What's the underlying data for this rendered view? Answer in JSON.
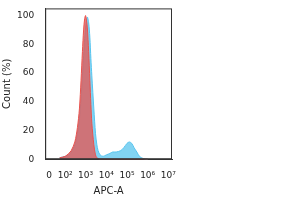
{
  "chart_data": {
    "type": "line",
    "x": [
      50,
      100,
      150,
      200,
      300,
      400,
      500,
      600,
      700,
      800,
      900,
      1000,
      1200,
      1400,
      1600,
      1800,
      2000,
      2500,
      3000,
      3500,
      4000,
      5000,
      7000,
      10000,
      15000,
      20000,
      30000,
      50000,
      70000,
      100000,
      130000,
      170000,
      220000,
      300000,
      400000,
      600000,
      1000000
    ],
    "series": [
      {
        "color": "#e8534f",
        "values": [
          1,
          2,
          4,
          6,
          12,
          22,
          35,
          55,
          75,
          90,
          98,
          100,
          92,
          75,
          55,
          38,
          25,
          10,
          3,
          1,
          0.5,
          0,
          0,
          0,
          0,
          0,
          0,
          0,
          0,
          0,
          0,
          0,
          0,
          0,
          0,
          0,
          0
        ]
      },
      {
        "color": "#58c4ee",
        "values": [
          1,
          2,
          3,
          5,
          10,
          18,
          28,
          42,
          58,
          72,
          84,
          92,
          99,
          95,
          85,
          70,
          58,
          35,
          18,
          10,
          6,
          3,
          2,
          3,
          4,
          5,
          5,
          6,
          8,
          11,
          12,
          11,
          8,
          5,
          2,
          0.5,
          0
        ]
      }
    ],
    "x_label": "APC-A",
    "y_label": "Count (%)",
    "log": "x",
    "xlim": [
      -15,
      15000000
    ],
    "xticks": [
      {
        "value": 0,
        "label": "0"
      },
      {
        "value": 100,
        "label": "10²"
      },
      {
        "value": 1000,
        "label": "10³"
      },
      {
        "value": 10000,
        "label": "10⁴"
      },
      {
        "value": 100000,
        "label": "10⁵"
      },
      {
        "value": 1000000,
        "label": "10⁶"
      },
      {
        "value": 10000000,
        "label": "10⁷"
      }
    ],
    "ylim": [
      0,
      105
    ],
    "yticks": [
      0,
      20,
      40,
      60,
      80,
      100
    ],
    "grid": false
  }
}
